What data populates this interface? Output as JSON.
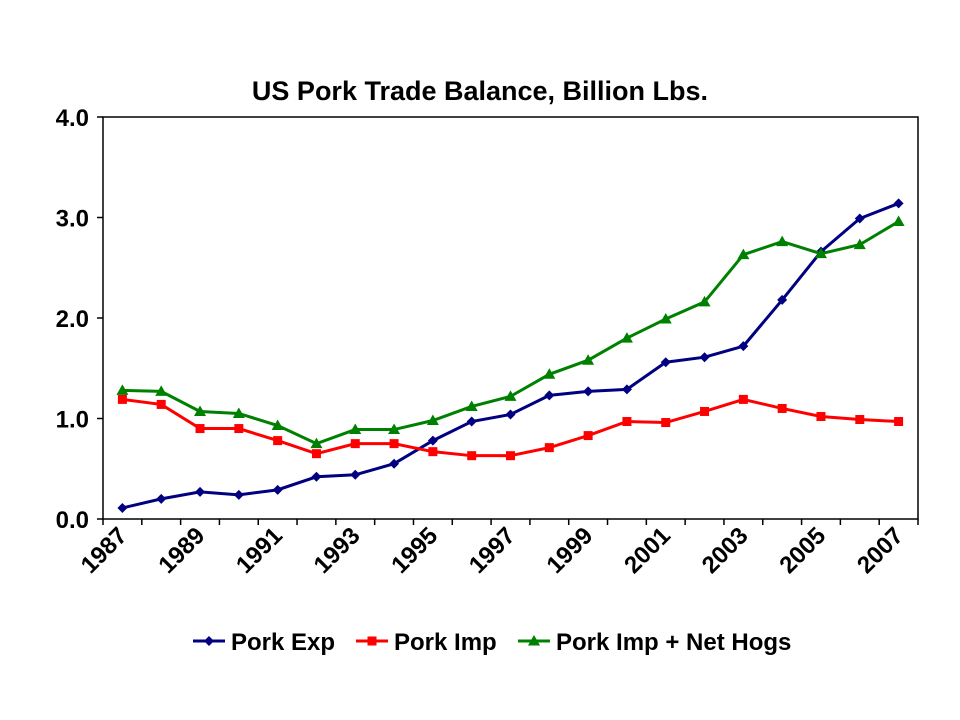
{
  "chart_data": {
    "type": "line",
    "title": "US Pork Trade Balance, Billion Lbs.",
    "xlabel": "",
    "ylabel": "",
    "ylim": [
      0,
      4
    ],
    "yticks": [
      "0.0",
      "1.0",
      "2.0",
      "3.0",
      "4.0"
    ],
    "xticks": [
      "1987",
      "1989",
      "1991",
      "1993",
      "1995",
      "1997",
      "1999",
      "2001",
      "2003",
      "2005",
      "2007"
    ],
    "x": [
      1987,
      1988,
      1989,
      1990,
      1991,
      1992,
      1993,
      1994,
      1995,
      1996,
      1997,
      1998,
      1999,
      2000,
      2001,
      2002,
      2003,
      2004,
      2005,
      2006,
      2007
    ],
    "grid": false,
    "legend_position": "bottom",
    "series": [
      {
        "name": "Pork Exp",
        "color": "#000080",
        "marker": "diamond",
        "values": [
          0.11,
          0.2,
          0.27,
          0.24,
          0.29,
          0.42,
          0.44,
          0.55,
          0.78,
          0.97,
          1.04,
          1.23,
          1.27,
          1.29,
          1.56,
          1.61,
          1.72,
          2.18,
          2.66,
          2.99,
          3.14
        ]
      },
      {
        "name": "Pork Imp",
        "color": "#ff0000",
        "marker": "square",
        "values": [
          1.19,
          1.14,
          0.9,
          0.9,
          0.78,
          0.65,
          0.75,
          0.75,
          0.67,
          0.63,
          0.63,
          0.71,
          0.83,
          0.97,
          0.96,
          1.07,
          1.19,
          1.1,
          1.02,
          0.99,
          0.97
        ]
      },
      {
        "name": "Pork Imp + Net Hogs",
        "color": "#008000",
        "marker": "triangle",
        "values": [
          1.28,
          1.27,
          1.07,
          1.05,
          0.93,
          0.75,
          0.89,
          0.89,
          0.98,
          1.12,
          1.22,
          1.44,
          1.58,
          1.8,
          1.99,
          2.16,
          2.63,
          2.76,
          2.64,
          2.73,
          2.96
        ]
      }
    ]
  }
}
